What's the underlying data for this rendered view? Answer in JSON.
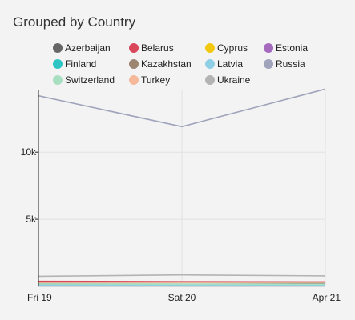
{
  "chart_data": {
    "type": "line",
    "title": "Grouped by Country",
    "x": [
      "Fri 19",
      "Sat 20",
      "Apr 21"
    ],
    "yticks": [
      {
        "value": 5000,
        "label": "5k"
      },
      {
        "value": 10000,
        "label": "10k"
      }
    ],
    "ylim": [
      0,
      14600
    ],
    "grid": true,
    "legend_position": "top",
    "series": [
      {
        "name": "Azerbaijan",
        "color": "#666666",
        "values": [
          120,
          130,
          110
        ]
      },
      {
        "name": "Belarus",
        "color": "#d9485a",
        "values": [
          380,
          350,
          330
        ]
      },
      {
        "name": "Cyprus",
        "color": "#f2c811",
        "values": [
          60,
          70,
          60
        ]
      },
      {
        "name": "Estonia",
        "color": "#a569bd",
        "values": [
          140,
          150,
          140
        ]
      },
      {
        "name": "Finland",
        "color": "#2ec4c4",
        "values": [
          40,
          50,
          40
        ]
      },
      {
        "name": "Kazakhstan",
        "color": "#9c8672",
        "values": [
          260,
          280,
          250
        ]
      },
      {
        "name": "Latvia",
        "color": "#8fcfe6",
        "values": [
          90,
          100,
          90
        ]
      },
      {
        "name": "Russia",
        "color": "#a0a4bb",
        "values": [
          14200,
          11900,
          14700
        ]
      },
      {
        "name": "Switzerland",
        "color": "#a8dfc1",
        "values": [
          180,
          170,
          160
        ]
      },
      {
        "name": "Turkey",
        "color": "#f5b89a",
        "values": [
          300,
          290,
          310
        ]
      },
      {
        "name": "Ukraine",
        "color": "#b3b3b3",
        "values": [
          750,
          850,
          780
        ]
      }
    ]
  }
}
